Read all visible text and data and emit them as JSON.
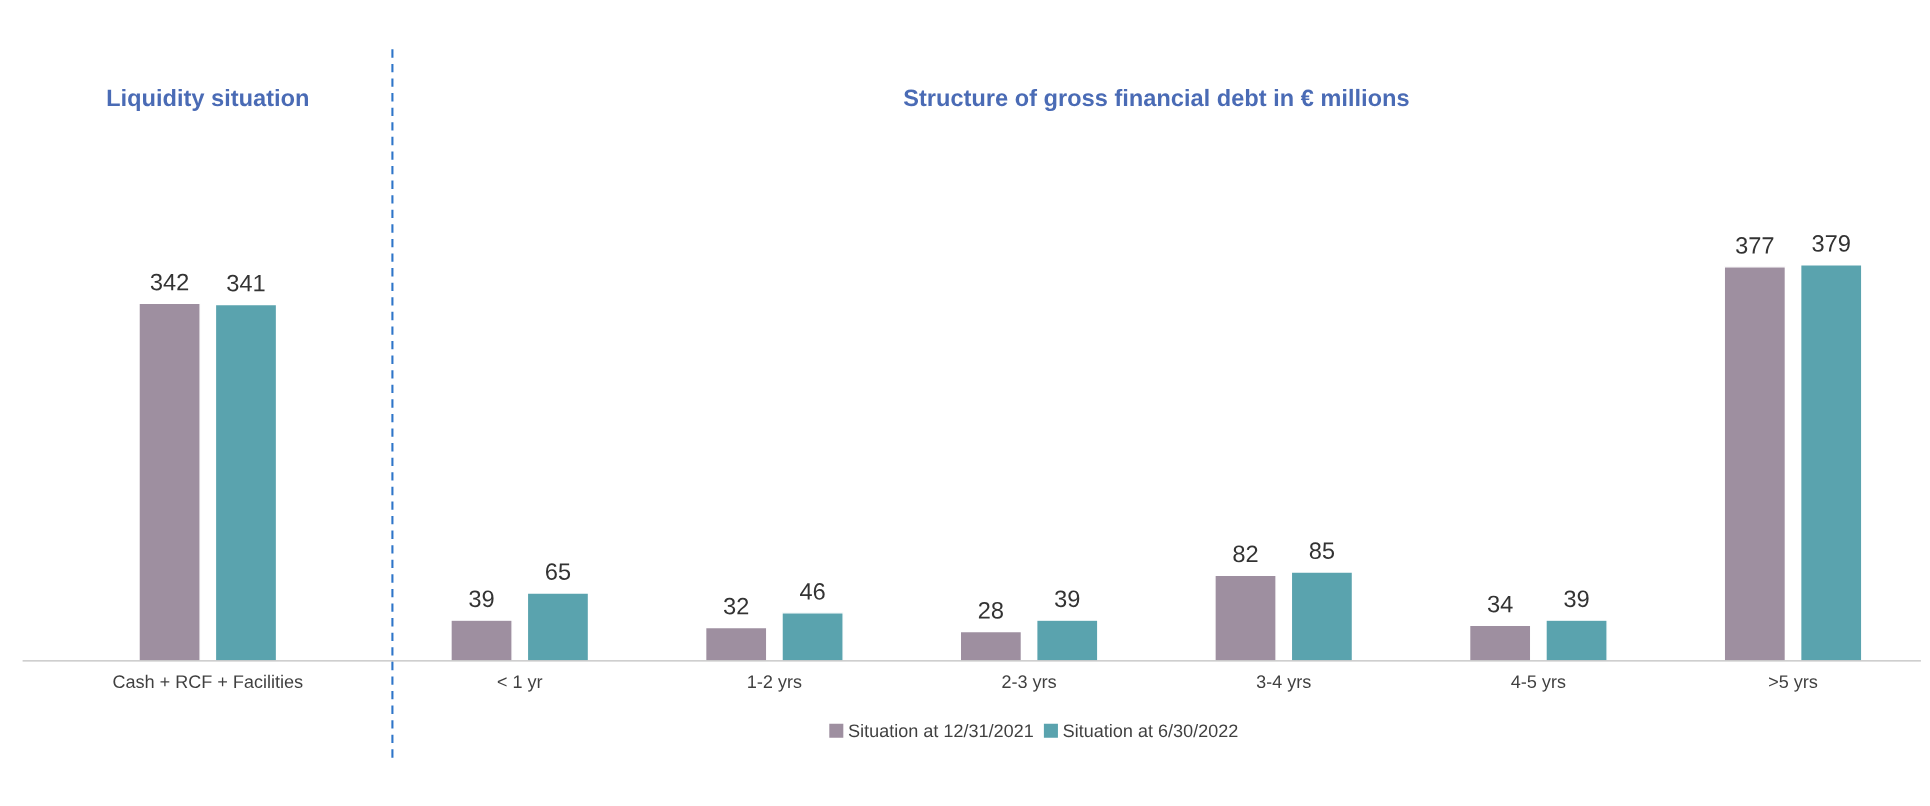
{
  "chart_data": [
    {
      "type": "bar",
      "title": "Liquidity situation",
      "categories": [
        "Cash + RCF + Facilities"
      ],
      "data_labels": true,
      "grid": false,
      "legend": false,
      "series": [
        {
          "color": "#9e8fa0",
          "values": [
            342
          ]
        },
        {
          "color": "#5aa3ae",
          "values": [
            341
          ]
        }
      ]
    },
    {
      "type": "bar",
      "title": "Structure of gross financial debt in € millions",
      "categories": [
        "< 1 yr",
        "1-2 yrs",
        "2-3 yrs",
        "3-4 yrs",
        "4-5 yrs",
        ">5 yrs"
      ],
      "data_labels": true,
      "grid": false,
      "legend": "bottom",
      "series": [
        {
          "name": "Situation at 12/31/2021",
          "color": "#9e8fa0",
          "values": [
            39,
            32,
            28,
            82,
            34,
            377
          ]
        },
        {
          "name": "Situation at 6/30/2022",
          "color": "#5aa3ae",
          "values": [
            65,
            46,
            39,
            85,
            39,
            379
          ]
        }
      ]
    }
  ]
}
